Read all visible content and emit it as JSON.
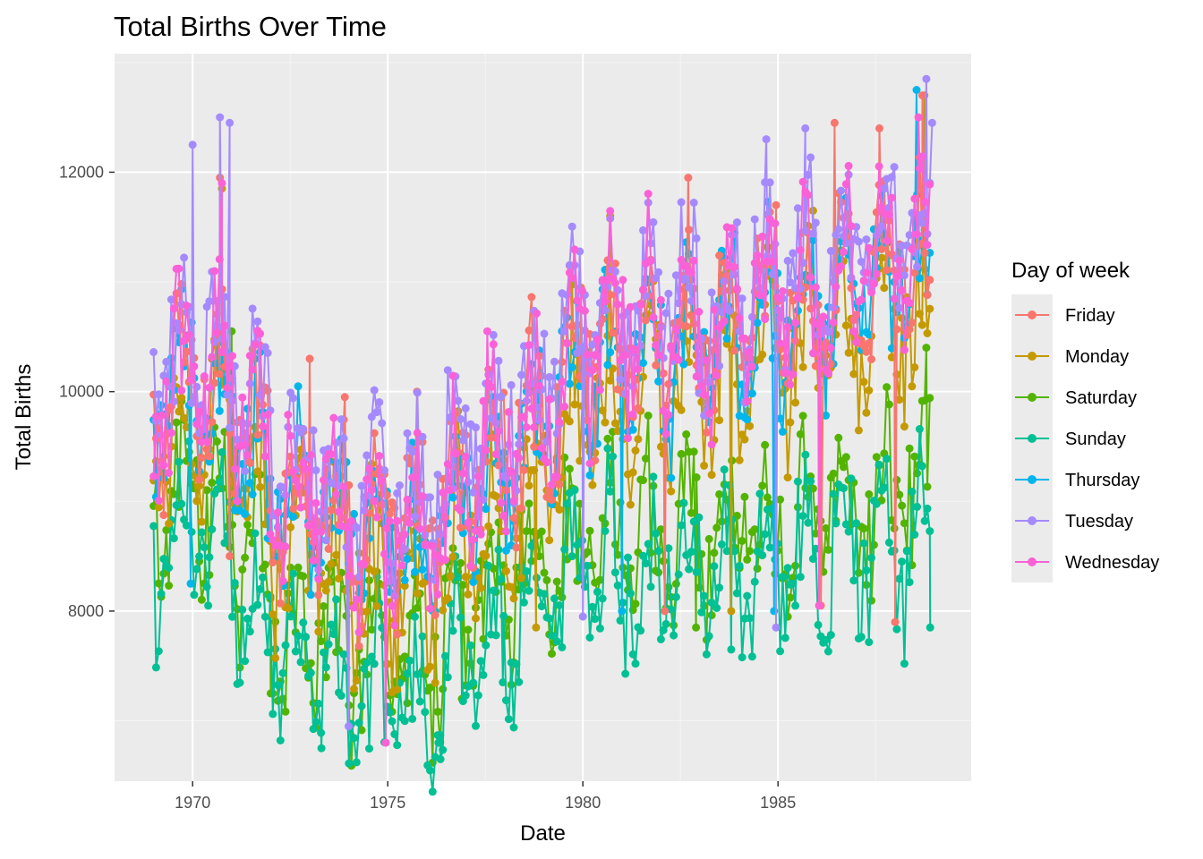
{
  "chart_data": {
    "type": "line",
    "title": "Total Births Over Time",
    "xlabel": "Date",
    "ylabel": "Total Births",
    "xlim": [
      1968.0,
      1989.95
    ],
    "ylim": [
      6450,
      13080
    ],
    "x_ticks": [
      1970,
      1975,
      1980,
      1985
    ],
    "y_ticks": [
      8000,
      10000,
      12000
    ],
    "grid": true,
    "legend_title": "Day of week",
    "legend_position": "right",
    "markers": true,
    "series": [
      {
        "name": "Friday",
        "color": "#F8766D",
        "offset": 250,
        "annual": [
          [
            1969,
            9750
          ],
          [
            1970,
            10250
          ],
          [
            1971,
            9950
          ],
          [
            1972,
            9250
          ],
          [
            1973,
            9100
          ],
          [
            1974,
            8850
          ],
          [
            1975,
            8750
          ],
          [
            1976,
            8700
          ],
          [
            1977,
            9300
          ],
          [
            1978,
            9450
          ],
          [
            1979,
            9750
          ],
          [
            1980,
            10450
          ],
          [
            1981,
            10500
          ],
          [
            1982,
            10550
          ],
          [
            1983,
            10450
          ],
          [
            1984,
            10650
          ],
          [
            1985,
            10750
          ],
          [
            1986,
            10850
          ],
          [
            1987,
            10950
          ],
          [
            1988,
            11100
          ],
          [
            1989,
            11150
          ]
        ],
        "extremes": [
          [
            1970.7,
            11950
          ],
          [
            1973.0,
            10300
          ],
          [
            1973.9,
            9950
          ],
          [
            1975.75,
            10000
          ],
          [
            1979.95,
            10950
          ],
          [
            1982.7,
            11950
          ],
          [
            1984.95,
            11700
          ],
          [
            1986.45,
            12450
          ],
          [
            1987.6,
            12400
          ],
          [
            1988.7,
            12700
          ],
          [
            1970.95,
            8500
          ],
          [
            1982.1,
            8000
          ],
          [
            1988.0,
            7900
          ],
          [
            1986.1,
            8050
          ]
        ]
      },
      {
        "name": "Monday",
        "color": "#C49A00",
        "offset": -250,
        "annual": [
          [
            1969,
            9250
          ],
          [
            1970,
            9750
          ],
          [
            1971,
            9450
          ],
          [
            1972,
            8750
          ],
          [
            1973,
            8600
          ],
          [
            1974,
            8350
          ],
          [
            1975,
            8250
          ],
          [
            1976,
            8200
          ],
          [
            1977,
            8800
          ],
          [
            1978,
            8950
          ],
          [
            1979,
            9250
          ],
          [
            1980,
            9950
          ],
          [
            1981,
            10000
          ],
          [
            1982,
            10050
          ],
          [
            1983,
            9950
          ],
          [
            1984,
            10150
          ],
          [
            1985,
            10250
          ],
          [
            1986,
            10350
          ],
          [
            1987,
            10450
          ],
          [
            1988,
            10600
          ],
          [
            1989,
            10650
          ]
        ],
        "extremes": [
          [
            1970.75,
            11850
          ],
          [
            1980.7,
            11600
          ],
          [
            1985.9,
            11650
          ],
          [
            1988.75,
            12700
          ],
          [
            1978.8,
            7850
          ],
          [
            1983.8,
            8000
          ]
        ]
      },
      {
        "name": "Saturday",
        "color": "#53B400",
        "offset": -1200,
        "annual": [
          [
            1969,
            8800
          ],
          [
            1970,
            9100
          ],
          [
            1971,
            8900
          ],
          [
            1972,
            8000
          ],
          [
            1973,
            7900
          ],
          [
            1974,
            7700
          ],
          [
            1975,
            7700
          ],
          [
            1976,
            7700
          ],
          [
            1977,
            8000
          ],
          [
            1978,
            8100
          ],
          [
            1979,
            8400
          ],
          [
            1980,
            8700
          ],
          [
            1981,
            8750
          ],
          [
            1982,
            8800
          ],
          [
            1983,
            8750
          ],
          [
            1984,
            8800
          ],
          [
            1985,
            8850
          ],
          [
            1986,
            8900
          ],
          [
            1987,
            8950
          ],
          [
            1988,
            9050
          ],
          [
            1989,
            9100
          ]
        ],
        "extremes": [
          [
            1971.0,
            10550
          ],
          [
            1988.8,
            10400
          ],
          [
            1972.0,
            7250
          ],
          [
            1976.9,
            7200
          ],
          [
            1982.9,
            7850
          ]
        ]
      },
      {
        "name": "Sunday",
        "color": "#00C094",
        "offset": -1700,
        "annual": [
          [
            1969,
            8400
          ],
          [
            1970,
            8700
          ],
          [
            1971,
            8500
          ],
          [
            1972,
            7800
          ],
          [
            1973,
            7500
          ],
          [
            1974,
            7300
          ],
          [
            1975,
            7250
          ],
          [
            1976,
            7200
          ],
          [
            1977,
            7600
          ],
          [
            1978,
            7750
          ],
          [
            1979,
            8000
          ],
          [
            1980,
            8300
          ],
          [
            1981,
            8350
          ],
          [
            1982,
            8400
          ],
          [
            1983,
            8400
          ],
          [
            1984,
            8450
          ],
          [
            1985,
            8550
          ],
          [
            1986,
            8600
          ],
          [
            1987,
            8650
          ],
          [
            1988,
            8700
          ],
          [
            1989,
            8750
          ]
        ],
        "extremes": [
          [
            1973.3,
            6750
          ],
          [
            1976.35,
            6650
          ],
          [
            1976.3,
            6800
          ],
          [
            1977.95,
            7350
          ],
          [
            1983.8,
            7650
          ],
          [
            1988.9,
            7850
          ],
          [
            1970.4,
            8050
          ]
        ]
      },
      {
        "name": "Thursday",
        "color": "#00B6EB",
        "offset": 150,
        "annual": [
          [
            1969,
            9650
          ],
          [
            1970,
            10150
          ],
          [
            1971,
            9850
          ],
          [
            1972,
            9150
          ],
          [
            1973,
            9000
          ],
          [
            1974,
            8750
          ],
          [
            1975,
            8650
          ],
          [
            1976,
            8600
          ],
          [
            1977,
            9200
          ],
          [
            1978,
            9350
          ],
          [
            1979,
            9650
          ],
          [
            1980,
            10350
          ],
          [
            1981,
            10400
          ],
          [
            1982,
            10450
          ],
          [
            1983,
            10350
          ],
          [
            1984,
            10550
          ],
          [
            1985,
            10650
          ],
          [
            1986,
            10750
          ],
          [
            1987,
            10850
          ],
          [
            1988,
            11000
          ],
          [
            1989,
            11050
          ]
        ],
        "extremes": [
          [
            1988.55,
            12750
          ],
          [
            1969.95,
            8250
          ],
          [
            1974.0,
            6950
          ],
          [
            1981.0,
            8000
          ],
          [
            1984.9,
            8000
          ]
        ]
      },
      {
        "name": "Tuesday",
        "color": "#A58AFF",
        "offset": 550,
        "annual": [
          [
            1969,
            10050
          ],
          [
            1970,
            10550
          ],
          [
            1971,
            10250
          ],
          [
            1972,
            9550
          ],
          [
            1973,
            9400
          ],
          [
            1974,
            9150
          ],
          [
            1975,
            9050
          ],
          [
            1976,
            9000
          ],
          [
            1977,
            9600
          ],
          [
            1978,
            9750
          ],
          [
            1979,
            10050
          ],
          [
            1980,
            10750
          ],
          [
            1981,
            10800
          ],
          [
            1982,
            10850
          ],
          [
            1983,
            10750
          ],
          [
            1984,
            10950
          ],
          [
            1985,
            11050
          ],
          [
            1986,
            11150
          ],
          [
            1987,
            11250
          ],
          [
            1988,
            11400
          ],
          [
            1989,
            11450
          ]
        ],
        "extremes": [
          [
            1970.0,
            12250
          ],
          [
            1970.7,
            12500
          ],
          [
            1970.95,
            12450
          ],
          [
            1984.7,
            12300
          ],
          [
            1985.7,
            12400
          ],
          [
            1988.8,
            12850
          ],
          [
            1988.95,
            12450
          ],
          [
            1974.0,
            6950
          ],
          [
            1980.0,
            7950
          ],
          [
            1984.95,
            7850
          ]
        ]
      },
      {
        "name": "Wednesday",
        "color": "#FB61D7",
        "offset": 300,
        "annual": [
          [
            1969,
            9800
          ],
          [
            1970,
            10300
          ],
          [
            1971,
            10000
          ],
          [
            1972,
            9300
          ],
          [
            1973,
            9150
          ],
          [
            1974,
            8900
          ],
          [
            1975,
            8800
          ],
          [
            1976,
            8750
          ],
          [
            1977,
            9350
          ],
          [
            1978,
            9500
          ],
          [
            1979,
            9800
          ],
          [
            1980,
            10500
          ],
          [
            1981,
            10550
          ],
          [
            1982,
            10600
          ],
          [
            1983,
            10500
          ],
          [
            1984,
            10700
          ],
          [
            1985,
            10800
          ],
          [
            1986,
            10900
          ],
          [
            1987,
            11000
          ],
          [
            1988,
            11150
          ],
          [
            1989,
            11200
          ]
        ],
        "extremes": [
          [
            1970.75,
            11900
          ],
          [
            1977.55,
            10550
          ],
          [
            1988.6,
            12500
          ],
          [
            1974.95,
            6800
          ],
          [
            1986.05,
            8050
          ]
        ]
      }
    ]
  }
}
